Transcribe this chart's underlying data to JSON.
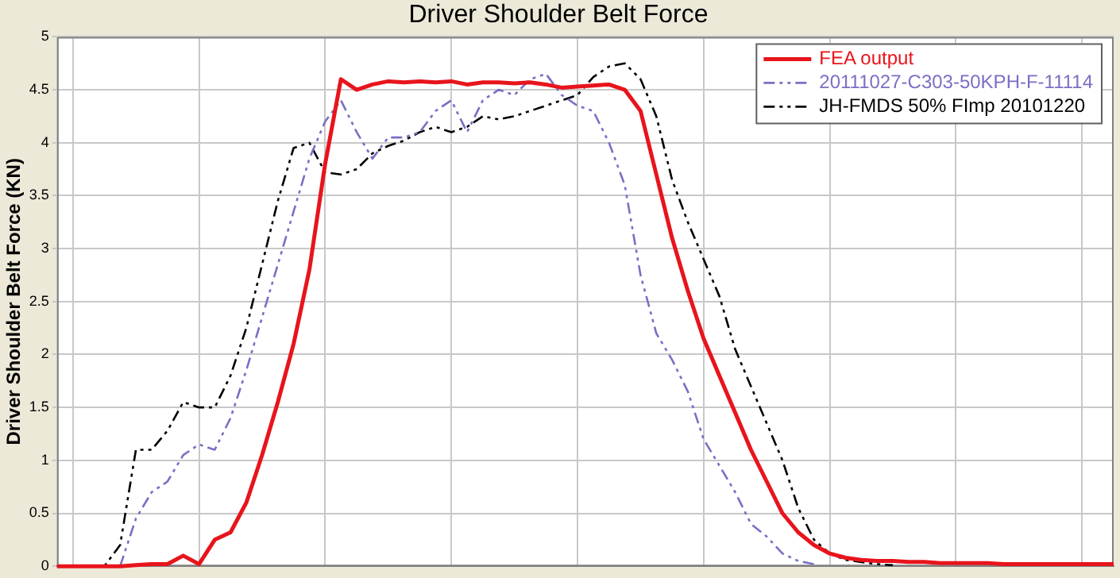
{
  "chart_data": {
    "type": "line",
    "title": "Driver Shoulder Belt Force",
    "ylabel": "Driver Shoulder Belt Force (KN)",
    "categories": [
      null,
      null,
      null,
      null,
      null,
      null,
      null,
      null,
      null,
      null,
      null,
      null,
      null,
      null,
      null,
      null,
      null,
      null,
      null,
      null,
      null,
      null,
      null,
      null,
      null,
      null,
      null,
      null,
      null,
      null,
      null,
      null,
      null,
      null,
      null,
      null,
      null,
      null,
      null,
      null,
      null,
      null,
      null,
      null,
      null,
      null,
      null,
      null,
      null,
      null,
      null,
      null,
      null,
      null,
      null,
      null,
      null,
      null,
      null,
      null,
      null,
      null,
      null,
      null,
      null,
      null,
      null,
      null
    ],
    "ylim": [
      0,
      5
    ],
    "yticks": [
      0,
      0.5,
      1,
      1.5,
      2,
      2.5,
      3,
      3.5,
      4,
      4.5,
      5
    ],
    "grid": true,
    "legend": "top right",
    "tick_labels": "y",
    "series": [
      {
        "name": "FEA output",
        "color": "#e8141c",
        "line_style": "solid",
        "values": [
          0,
          0,
          0,
          0,
          0,
          0.01,
          0.02,
          0.02,
          0.1,
          0.02,
          0.25,
          0.32,
          0.6,
          1.05,
          1.55,
          2.1,
          2.8,
          3.8,
          4.6,
          4.5,
          4.55,
          4.58,
          4.57,
          4.58,
          4.57,
          4.58,
          4.55,
          4.57,
          4.57,
          4.56,
          4.57,
          4.55,
          4.52,
          4.53,
          4.54,
          4.55,
          4.5,
          4.3,
          3.7,
          3.1,
          2.6,
          2.15,
          1.8,
          1.45,
          1.1,
          0.8,
          0.5,
          0.32,
          0.2,
          0.12,
          0.08,
          0.06,
          0.05,
          0.05,
          0.04,
          0.04,
          0.03,
          0.03,
          0.03,
          0.03,
          0.02,
          0.02,
          0.02,
          0.02,
          0.02,
          0.02,
          0.02,
          0.02
        ]
      },
      {
        "name": "20111027-C303-50KPH-F-11114",
        "color": "#7a6fc4",
        "line_style": "dashed",
        "values": [
          null,
          null,
          null,
          null,
          0,
          0.45,
          0.7,
          0.8,
          1.05,
          1.15,
          1.1,
          1.4,
          1.85,
          2.35,
          2.85,
          3.35,
          3.85,
          4.2,
          4.4,
          4.1,
          3.85,
          4.05,
          4.05,
          4.1,
          4.3,
          4.4,
          4.1,
          4.4,
          4.5,
          4.45,
          4.6,
          4.65,
          4.45,
          4.35,
          4.3,
          4.0,
          3.6,
          2.75,
          2.2,
          1.95,
          1.65,
          1.2,
          0.95,
          0.7,
          0.4,
          0.28,
          0.12,
          0.05,
          0.02,
          null,
          null,
          null,
          null,
          null,
          null,
          null,
          null,
          null,
          null,
          null,
          null,
          null,
          null,
          null,
          null,
          null,
          null,
          null
        ]
      },
      {
        "name": "JH-FMDS 50% FImp 20101220",
        "color": "#000000",
        "line_style": "dashed",
        "values": [
          0,
          0,
          0,
          0,
          0.2,
          1.1,
          1.1,
          1.28,
          1.55,
          1.5,
          1.5,
          1.8,
          2.25,
          2.85,
          3.45,
          3.95,
          4.0,
          3.72,
          3.7,
          3.75,
          3.9,
          3.97,
          4.02,
          4.1,
          4.15,
          4.1,
          4.15,
          4.25,
          4.22,
          4.25,
          4.3,
          4.35,
          4.4,
          4.45,
          4.62,
          4.72,
          4.75,
          4.6,
          4.25,
          3.65,
          3.25,
          2.9,
          2.55,
          2.05,
          1.7,
          1.35,
          1.0,
          0.55,
          0.25,
          0.12,
          0.06,
          0.04,
          0.02,
          0.01,
          null,
          null,
          null,
          null,
          null,
          null,
          null,
          null,
          null,
          null,
          null,
          null,
          null,
          null
        ]
      }
    ]
  }
}
